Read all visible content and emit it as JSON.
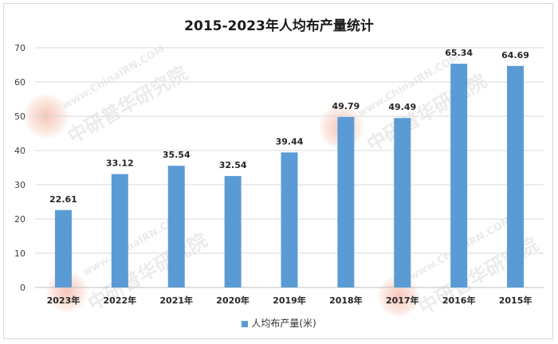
{
  "chart_data": {
    "type": "bar",
    "title": "2015-2023年人均布产量统计",
    "categories": [
      "2023年",
      "2022年",
      "2021年",
      "2020年",
      "2019年",
      "2018年",
      "2017年",
      "2016年",
      "2015年"
    ],
    "series": [
      {
        "name": "人均布产量(米)",
        "values": [
          22.61,
          33.12,
          35.54,
          32.54,
          39.44,
          49.79,
          49.49,
          65.34,
          64.69
        ]
      }
    ],
    "data_labels": [
      "22.61",
      "33.12",
      "35.54",
      "32.54",
      "39.44",
      "49.79",
      "49.49",
      "65.34",
      "64.69"
    ],
    "yticks": [
      "0",
      "10",
      "20",
      "30",
      "40",
      "50",
      "60",
      "70"
    ],
    "ylim": [
      0,
      70
    ],
    "grid": true,
    "legend_position": "bottom",
    "colors": {
      "bar": "#5b9bd5",
      "grid": "#d9d9d9",
      "axis": "#bfbfbf",
      "text": "#404040"
    }
  },
  "watermark": {
    "text_latin": "www.ChinaIRN.COM",
    "text_cjk": "中研普华研究院",
    "badge": "CIRN"
  }
}
